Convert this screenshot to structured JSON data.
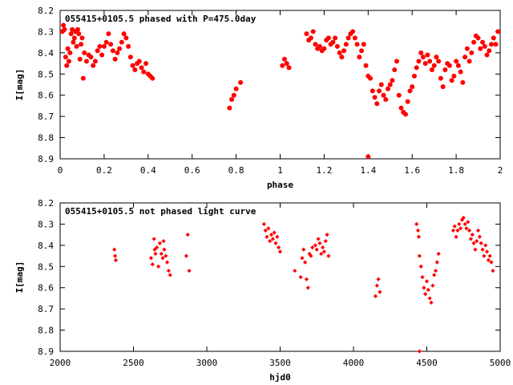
{
  "chart_data": [
    {
      "type": "scatter",
      "title": "055415+0105.5 phased with P=475.0day",
      "xlabel": "phase",
      "ylabel": "I[mag]",
      "xlim": [
        0,
        2
      ],
      "ylim": [
        8.2,
        8.9
      ],
      "y_inverted": true,
      "xticks": [
        "0",
        "0.2",
        "0.4",
        "0.6",
        "0.8",
        "1",
        "1.2",
        "1.4",
        "1.6",
        "1.8",
        "2"
      ],
      "yticks": [
        "8.2",
        "8.3",
        "8.4",
        "8.5",
        "8.6",
        "8.7",
        "8.8",
        "8.9"
      ],
      "marker_color": "#ff0000",
      "marker": "filled-circle",
      "series": [
        {
          "points": [
            [
              0.01,
              8.3
            ],
            [
              0.015,
              8.27
            ],
            [
              0.02,
              8.29
            ],
            [
              0.025,
              8.42
            ],
            [
              0.03,
              8.46
            ],
            [
              0.035,
              8.38
            ],
            [
              0.04,
              8.44
            ],
            [
              0.045,
              8.4
            ],
            [
              0.05,
              8.31
            ],
            [
              0.055,
              8.29
            ],
            [
              0.06,
              8.35
            ],
            [
              0.065,
              8.33
            ],
            [
              0.07,
              8.3
            ],
            [
              0.075,
              8.37
            ],
            [
              0.08,
              8.29
            ],
            [
              0.085,
              8.31
            ],
            [
              0.09,
              8.43
            ],
            [
              0.095,
              8.36
            ],
            [
              0.1,
              8.33
            ],
            [
              0.105,
              8.52
            ],
            [
              0.11,
              8.4
            ],
            [
              0.12,
              8.44
            ],
            [
              0.13,
              8.41
            ],
            [
              0.14,
              8.42
            ],
            [
              0.15,
              8.46
            ],
            [
              0.16,
              8.44
            ],
            [
              0.17,
              8.39
            ],
            [
              0.18,
              8.37
            ],
            [
              0.19,
              8.41
            ],
            [
              0.2,
              8.37
            ],
            [
              0.21,
              8.35
            ],
            [
              0.22,
              8.31
            ],
            [
              0.23,
              8.36
            ],
            [
              0.24,
              8.39
            ],
            [
              0.25,
              8.43
            ],
            [
              0.26,
              8.4
            ],
            [
              0.27,
              8.38
            ],
            [
              0.28,
              8.35
            ],
            [
              0.29,
              8.31
            ],
            [
              0.3,
              8.33
            ],
            [
              0.31,
              8.37
            ],
            [
              0.32,
              8.42
            ],
            [
              0.33,
              8.46
            ],
            [
              0.34,
              8.48
            ],
            [
              0.35,
              8.45
            ],
            [
              0.36,
              8.44
            ],
            [
              0.37,
              8.47
            ],
            [
              0.38,
              8.49
            ],
            [
              0.39,
              8.45
            ],
            [
              0.4,
              8.5
            ],
            [
              0.41,
              8.51
            ],
            [
              0.42,
              8.52
            ],
            [
              0.77,
              8.66
            ],
            [
              0.78,
              8.62
            ],
            [
              0.79,
              8.6
            ],
            [
              0.8,
              8.57
            ],
            [
              0.82,
              8.54
            ],
            [
              1.01,
              8.46
            ],
            [
              1.02,
              8.43
            ],
            [
              1.03,
              8.45
            ],
            [
              1.04,
              8.47
            ],
            [
              1.12,
              8.31
            ],
            [
              1.13,
              8.34
            ],
            [
              1.14,
              8.33
            ],
            [
              1.15,
              8.3
            ],
            [
              1.16,
              8.36
            ],
            [
              1.17,
              8.38
            ],
            [
              1.18,
              8.37
            ],
            [
              1.19,
              8.39
            ],
            [
              1.2,
              8.38
            ],
            [
              1.21,
              8.34
            ],
            [
              1.22,
              8.33
            ],
            [
              1.23,
              8.36
            ],
            [
              1.24,
              8.35
            ],
            [
              1.25,
              8.33
            ],
            [
              1.26,
              8.37
            ],
            [
              1.27,
              8.4
            ],
            [
              1.28,
              8.42
            ],
            [
              1.29,
              8.39
            ],
            [
              1.3,
              8.36
            ],
            [
              1.31,
              8.33
            ],
            [
              1.32,
              8.31
            ],
            [
              1.33,
              8.3
            ],
            [
              1.34,
              8.33
            ],
            [
              1.35,
              8.36
            ],
            [
              1.36,
              8.42
            ],
            [
              1.37,
              8.39
            ],
            [
              1.38,
              8.36
            ],
            [
              1.39,
              8.46
            ],
            [
              1.4,
              8.51
            ],
            [
              1.41,
              8.52
            ],
            [
              1.42,
              8.58
            ],
            [
              1.43,
              8.61
            ],
            [
              1.44,
              8.64
            ],
            [
              1.45,
              8.58
            ],
            [
              1.46,
              8.55
            ],
            [
              1.47,
              8.6
            ],
            [
              1.48,
              8.62
            ],
            [
              1.49,
              8.57
            ],
            [
              1.5,
              8.55
            ],
            [
              1.51,
              8.53
            ],
            [
              1.52,
              8.48
            ],
            [
              1.53,
              8.44
            ],
            [
              1.54,
              8.6
            ],
            [
              1.55,
              8.66
            ],
            [
              1.56,
              8.68
            ],
            [
              1.57,
              8.69
            ],
            [
              1.58,
              8.63
            ],
            [
              1.59,
              8.58
            ],
            [
              1.6,
              8.56
            ],
            [
              1.61,
              8.51
            ],
            [
              1.62,
              8.47
            ],
            [
              1.63,
              8.44
            ],
            [
              1.64,
              8.4
            ],
            [
              1.65,
              8.42
            ],
            [
              1.66,
              8.45
            ],
            [
              1.67,
              8.41
            ],
            [
              1.68,
              8.44
            ],
            [
              1.69,
              8.48
            ],
            [
              1.7,
              8.46
            ],
            [
              1.71,
              8.42
            ],
            [
              1.72,
              8.44
            ],
            [
              1.73,
              8.52
            ],
            [
              1.74,
              8.56
            ],
            [
              1.75,
              8.48
            ],
            [
              1.76,
              8.45
            ],
            [
              1.77,
              8.46
            ],
            [
              1.78,
              8.53
            ],
            [
              1.79,
              8.51
            ],
            [
              1.8,
              8.44
            ],
            [
              1.81,
              8.46
            ],
            [
              1.82,
              8.49
            ],
            [
              1.83,
              8.54
            ],
            [
              1.84,
              8.42
            ],
            [
              1.85,
              8.38
            ],
            [
              1.86,
              8.44
            ],
            [
              1.87,
              8.4
            ],
            [
              1.88,
              8.35
            ],
            [
              1.89,
              8.32
            ],
            [
              1.9,
              8.33
            ],
            [
              1.91,
              8.38
            ],
            [
              1.92,
              8.35
            ],
            [
              1.93,
              8.37
            ],
            [
              1.94,
              8.41
            ],
            [
              1.95,
              8.39
            ],
            [
              1.96,
              8.36
            ],
            [
              1.97,
              8.33
            ],
            [
              1.98,
              8.36
            ],
            [
              1.99,
              8.3
            ],
            [
              1.4,
              8.89
            ]
          ]
        }
      ]
    },
    {
      "type": "scatter",
      "title": "055415+0105.5 not phased light curve",
      "xlabel": "hjd0",
      "ylabel": "I[mag]",
      "xlim": [
        2000,
        5000
      ],
      "ylim": [
        8.2,
        8.9
      ],
      "y_inverted": true,
      "xticks": [
        "2000",
        "2500",
        "3000",
        "3500",
        "4000",
        "4500",
        "5000"
      ],
      "yticks": [
        "8.2",
        "8.3",
        "8.4",
        "8.5",
        "8.6",
        "8.7",
        "8.8",
        "8.9"
      ],
      "marker_color": "#ff0000",
      "marker": "filled-diamond",
      "series": [
        {
          "points": [
            [
              2370,
              8.42
            ],
            [
              2375,
              8.45
            ],
            [
              2380,
              8.47
            ],
            [
              2620,
              8.46
            ],
            [
              2630,
              8.49
            ],
            [
              2640,
              8.37
            ],
            [
              2645,
              8.42
            ],
            [
              2650,
              8.44
            ],
            [
              2660,
              8.41
            ],
            [
              2670,
              8.5
            ],
            [
              2680,
              8.39
            ],
            [
              2690,
              8.44
            ],
            [
              2700,
              8.46
            ],
            [
              2705,
              8.38
            ],
            [
              2710,
              8.42
            ],
            [
              2720,
              8.45
            ],
            [
              2730,
              8.48
            ],
            [
              2740,
              8.52
            ],
            [
              2750,
              8.54
            ],
            [
              2860,
              8.45
            ],
            [
              2870,
              8.35
            ],
            [
              2880,
              8.52
            ],
            [
              3390,
              8.3
            ],
            [
              3400,
              8.33
            ],
            [
              3410,
              8.36
            ],
            [
              3420,
              8.32
            ],
            [
              3430,
              8.38
            ],
            [
              3440,
              8.35
            ],
            [
              3450,
              8.37
            ],
            [
              3460,
              8.34
            ],
            [
              3470,
              8.39
            ],
            [
              3480,
              8.36
            ],
            [
              3490,
              8.41
            ],
            [
              3500,
              8.43
            ],
            [
              3600,
              8.52
            ],
            [
              3640,
              8.55
            ],
            [
              3650,
              8.46
            ],
            [
              3660,
              8.42
            ],
            [
              3670,
              8.48
            ],
            [
              3680,
              8.56
            ],
            [
              3690,
              8.6
            ],
            [
              3700,
              8.44
            ],
            [
              3710,
              8.45
            ],
            [
              3720,
              8.41
            ],
            [
              3740,
              8.4
            ],
            [
              3750,
              8.42
            ],
            [
              3760,
              8.37
            ],
            [
              3770,
              8.39
            ],
            [
              3780,
              8.44
            ],
            [
              3790,
              8.41
            ],
            [
              3800,
              8.43
            ],
            [
              3810,
              8.38
            ],
            [
              3820,
              8.35
            ],
            [
              3830,
              8.45
            ],
            [
              4150,
              8.64
            ],
            [
              4160,
              8.59
            ],
            [
              4170,
              8.56
            ],
            [
              4180,
              8.62
            ],
            [
              4430,
              8.3
            ],
            [
              4440,
              8.33
            ],
            [
              4445,
              8.36
            ],
            [
              4450,
              8.45
            ],
            [
              4460,
              8.5
            ],
            [
              4470,
              8.55
            ],
            [
              4480,
              8.6
            ],
            [
              4490,
              8.63
            ],
            [
              4500,
              8.57
            ],
            [
              4510,
              8.61
            ],
            [
              4520,
              8.65
            ],
            [
              4530,
              8.67
            ],
            [
              4540,
              8.59
            ],
            [
              4550,
              8.54
            ],
            [
              4560,
              8.52
            ],
            [
              4570,
              8.48
            ],
            [
              4580,
              8.44
            ],
            [
              4450,
              8.9
            ],
            [
              4680,
              8.33
            ],
            [
              4690,
              8.31
            ],
            [
              4700,
              8.36
            ],
            [
              4710,
              8.33
            ],
            [
              4720,
              8.3
            ],
            [
              4730,
              8.32
            ],
            [
              4740,
              8.28
            ],
            [
              4750,
              8.27
            ],
            [
              4760,
              8.3
            ],
            [
              4770,
              8.32
            ],
            [
              4780,
              8.29
            ],
            [
              4790,
              8.33
            ],
            [
              4800,
              8.37
            ],
            [
              4810,
              8.35
            ],
            [
              4820,
              8.39
            ],
            [
              4830,
              8.42
            ],
            [
              4840,
              8.38
            ],
            [
              4850,
              8.33
            ],
            [
              4860,
              8.36
            ],
            [
              4870,
              8.39
            ],
            [
              4880,
              8.42
            ],
            [
              4890,
              8.45
            ],
            [
              4900,
              8.4
            ],
            [
              4910,
              8.43
            ],
            [
              4920,
              8.47
            ],
            [
              4930,
              8.45
            ],
            [
              4940,
              8.48
            ],
            [
              4950,
              8.52
            ]
          ]
        }
      ]
    }
  ]
}
